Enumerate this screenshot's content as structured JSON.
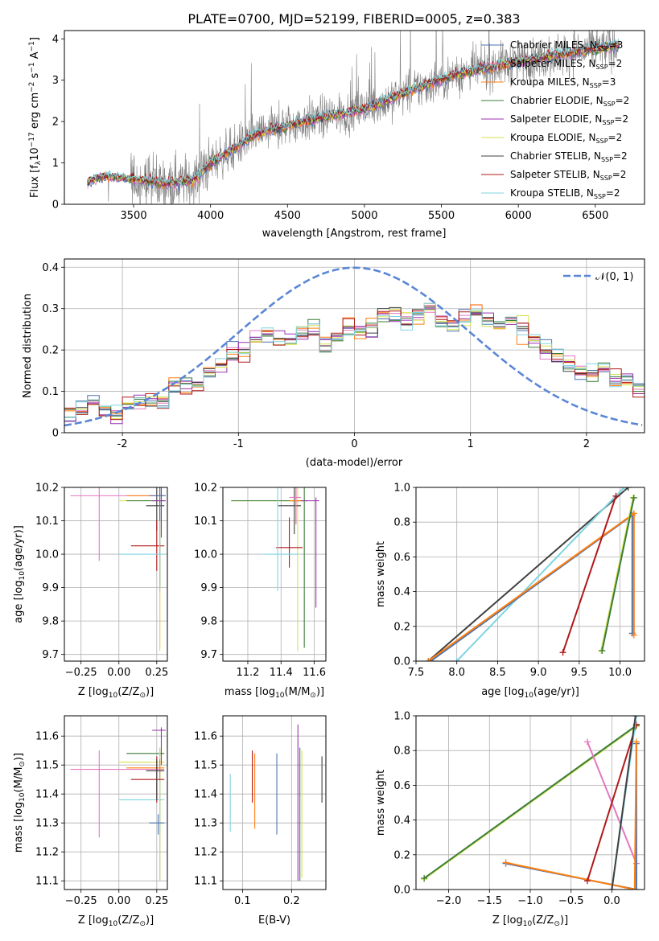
{
  "figure_title": "PLATE=0700, MJD=52199, FIBERID=0005, z=0.383",
  "colors": {
    "Chabrier MILES": "#4c72b0",
    "Salpeter MILES": "#e377c2",
    "Kroupa MILES": "#ff7f0e",
    "Chabrier ELODIE": "#3b7d3b",
    "Salpeter ELODIE": "#9b30b0",
    "Kroupa ELODIE": "#d6e34a",
    "Chabrier STELIB": "#404040",
    "Salpeter STELIB": "#b01818",
    "Kroupa STELIB": "#7fd4e0",
    "data": "#808080",
    "normal": "#5a86d6"
  },
  "chart_data": [
    {
      "id": "spectrum",
      "type": "line",
      "title": "PLATE=0700, MJD=52199, FIBERID=0005, z=0.383",
      "xlabel": "wavelength [Angstrom, rest frame]",
      "ylabel": "Flux [f",
      "ylabel_sub": "λ",
      "ylabel_rest": "10",
      "ylabel_sup": "−17",
      "ylabel_tail": " erg cm",
      "ylabel_sup2": "−2",
      "ylabel_tail2": " s",
      "ylabel_sup3": "−1",
      "ylabel_tail3": " A",
      "ylabel_sup4": "−1",
      "ylabel_end": "]",
      "xlim": [
        3050,
        6820
      ],
      "ylim": [
        0,
        4.2
      ],
      "xticks": [
        3500,
        4000,
        4500,
        5000,
        5500,
        6000,
        6500
      ],
      "yticks": [
        0,
        1,
        2,
        3,
        4
      ],
      "legend_position": "top-right",
      "data_range": [
        3200,
        6660
      ],
      "model_anchor_points": [
        [
          3200,
          0.55
        ],
        [
          3300,
          0.68
        ],
        [
          3500,
          0.62
        ],
        [
          3700,
          0.5
        ],
        [
          3900,
          0.6
        ],
        [
          4000,
          1.0
        ],
        [
          4300,
          1.7
        ],
        [
          4600,
          2.0
        ],
        [
          5000,
          2.3
        ],
        [
          5300,
          2.75
        ],
        [
          5600,
          3.15
        ],
        [
          6000,
          3.45
        ],
        [
          6400,
          3.7
        ],
        [
          6660,
          3.85
        ]
      ],
      "series": [
        {
          "name": "Chabrier MILES",
          "label": "Chabrier MILES, N",
          "sub": "SSP",
          "tail": "=3"
        },
        {
          "name": "Salpeter MILES",
          "label": "Salpeter MILES, N",
          "sub": "SSP",
          "tail": "=2"
        },
        {
          "name": "Kroupa MILES",
          "label": "Kroupa MILES, N",
          "sub": "SSP",
          "tail": "=3"
        },
        {
          "name": "Chabrier ELODIE",
          "label": "Chabrier ELODIE, N",
          "sub": "SSP",
          "tail": "=2"
        },
        {
          "name": "Salpeter ELODIE",
          "label": "Salpeter ELODIE, N",
          "sub": "SSP",
          "tail": "=2"
        },
        {
          "name": "Kroupa ELODIE",
          "label": "Kroupa ELODIE, N",
          "sub": "SSP",
          "tail": "=2"
        },
        {
          "name": "Chabrier STELIB",
          "label": "Chabrier STELIB, N",
          "sub": "SSP",
          "tail": "=2"
        },
        {
          "name": "Salpeter STELIB",
          "label": "Salpeter STELIB, N",
          "sub": "SSP",
          "tail": "=2"
        },
        {
          "name": "Kroupa STELIB",
          "label": "Kroupa STELIB, N",
          "sub": "SSP",
          "tail": "=2"
        }
      ]
    },
    {
      "id": "residuals",
      "type": "line",
      "xlabel": "(data-model)/error",
      "ylabel": "Normed distribution",
      "xlim": [
        -2.5,
        2.5
      ],
      "ylim": [
        0,
        0.42
      ],
      "xticks": [
        -2,
        -1,
        0,
        1,
        2
      ],
      "yticks": [
        0.0,
        0.1,
        0.2,
        0.3,
        0.4
      ],
      "grid": true,
      "legend_position": "top-right",
      "legend_label": "𝒩(0, 1)",
      "bins": [
        -2.5,
        2.5,
        50
      ],
      "base_hist": [
        0.045,
        0.055,
        0.07,
        0.055,
        0.045,
        0.06,
        0.08,
        0.07,
        0.08,
        0.11,
        0.12,
        0.11,
        0.15,
        0.16,
        0.19,
        0.2,
        0.23,
        0.24,
        0.22,
        0.23,
        0.24,
        0.25,
        0.22,
        0.23,
        0.26,
        0.24,
        0.25,
        0.28,
        0.29,
        0.27,
        0.28,
        0.3,
        0.27,
        0.26,
        0.28,
        0.29,
        0.27,
        0.26,
        0.27,
        0.25,
        0.23,
        0.2,
        0.19,
        0.17,
        0.15,
        0.14,
        0.16,
        0.13,
        0.12,
        0.11
      ]
    },
    {
      "id": "age-vs-Z",
      "type": "scatter",
      "xlabel": "Z [log",
      "xlabel_sub": "10",
      "xlabel_rest": "(Z/Z",
      "xlabel_sub2": "⊙",
      "xlabel_end": ")]",
      "ylabel": "age  [log",
      "ylabel_sub": "10",
      "ylabel_rest": "(age/yr)]",
      "xlim": [
        -0.36,
        0.32
      ],
      "ylim": [
        9.68,
        10.2
      ],
      "xticks": [
        -0.25,
        0.0,
        0.25
      ],
      "xticklabels": [
        "−0.25",
        "0.00",
        "0.25"
      ],
      "yticks": [
        9.7,
        9.8,
        9.9,
        10.0,
        10.1,
        10.2
      ],
      "yticklabels": [
        "9.7",
        "9.8",
        "9.9",
        "10.0",
        "10.1",
        "10.2"
      ],
      "grid": true,
      "points": [
        {
          "series": "Salpeter MILES",
          "x": -0.13,
          "xlo": -0.32,
          "xhi": 0.3,
          "y": 10.175,
          "ylo": 9.98,
          "yhi": 10.2
        },
        {
          "series": "Kroupa MILES",
          "x": 0.27,
          "xlo": 0.05,
          "xhi": 0.3,
          "y": 10.175,
          "ylo": 9.72,
          "yhi": 10.2
        },
        {
          "series": "Kroupa ELODIE",
          "x": 0.27,
          "xlo": 0.0,
          "xhi": 0.3,
          "y": 10.16,
          "ylo": 9.71,
          "yhi": 10.2
        },
        {
          "series": "Chabrier ELODIE",
          "x": 0.27,
          "xlo": 0.05,
          "xhi": 0.3,
          "y": 10.16,
          "ylo": 9.9,
          "yhi": 10.2
        },
        {
          "series": "Chabrier STELIB",
          "x": 0.25,
          "xlo": 0.18,
          "xhi": 0.3,
          "y": 10.145,
          "ylo": 10.07,
          "yhi": 10.2
        },
        {
          "series": "Salpeter STELIB",
          "x": 0.25,
          "xlo": 0.08,
          "xhi": 0.3,
          "y": 10.025,
          "ylo": 9.95,
          "yhi": 10.1
        },
        {
          "series": "Kroupa STELIB",
          "x": 0.27,
          "xlo": 0.0,
          "xhi": 0.3,
          "y": 10.0,
          "ylo": 9.89,
          "yhi": 10.2
        },
        {
          "series": "Salpeter ELODIE",
          "x": 0.28,
          "xlo": 0.22,
          "xhi": 0.31,
          "y": 10.16,
          "ylo": 10.05,
          "yhi": 10.2
        },
        {
          "series": "Chabrier MILES",
          "x": 0.27,
          "xlo": 0.2,
          "xhi": 0.31,
          "y": 10.175,
          "ylo": 10.1,
          "yhi": 10.2
        }
      ]
    },
    {
      "id": "age-vs-mass",
      "type": "scatter",
      "xlabel": "mass [log",
      "xlabel_sub": "10",
      "xlabel_rest": "(M/M",
      "xlabel_sub2": "⊙",
      "xlabel_end": ")]",
      "xlim": [
        11.05,
        11.67
      ],
      "ylim": [
        9.68,
        10.2
      ],
      "xticks": [
        11.2,
        11.4,
        11.6
      ],
      "yticks": [
        9.7,
        9.8,
        9.9,
        10.0,
        10.1,
        10.2
      ],
      "yticklabels": [
        "9.7",
        "9.8",
        "9.9",
        "10.0",
        "10.1",
        "10.2"
      ],
      "grid": true,
      "points": [
        {
          "series": "Kroupa ELODIE",
          "x": 11.5,
          "xlo": 11.1,
          "xhi": 11.56,
          "y": 10.16,
          "ylo": 9.71,
          "yhi": 10.2
        },
        {
          "series": "Chabrier ELODIE",
          "x": 11.54,
          "xlo": 11.1,
          "xhi": 11.56,
          "y": 10.16,
          "ylo": 9.72,
          "yhi": 10.2
        },
        {
          "series": "Salpeter ELODIE",
          "x": 11.61,
          "xlo": 11.5,
          "xhi": 11.63,
          "y": 10.16,
          "ylo": 9.84,
          "yhi": 10.17
        },
        {
          "series": "Chabrier STELIB",
          "x": 11.48,
          "xlo": 11.38,
          "xhi": 11.52,
          "y": 10.145,
          "ylo": 10.06,
          "yhi": 10.2
        },
        {
          "series": "Salpeter STELIB",
          "x": 11.45,
          "xlo": 11.37,
          "xhi": 11.53,
          "y": 10.02,
          "ylo": 9.96,
          "yhi": 10.11
        },
        {
          "series": "Kroupa STELIB",
          "x": 11.38,
          "xlo": 11.29,
          "xhi": 11.5,
          "y": 10.0,
          "ylo": 9.89,
          "yhi": 10.2
        },
        {
          "series": "Kroupa MILES",
          "x": 11.49,
          "xlo": 11.45,
          "xhi": 11.52,
          "y": 10.16,
          "ylo": 10.09,
          "yhi": 10.2
        },
        {
          "series": "Salpeter MILES",
          "x": 11.49,
          "xlo": 11.45,
          "xhi": 11.52,
          "y": 10.17,
          "ylo": 10.09,
          "yhi": 10.2
        }
      ]
    },
    {
      "id": "mass-weight-vs-age",
      "type": "line",
      "xlabel": "age  [log",
      "xlabel_sub": "10",
      "xlabel_rest": "(age/yr)]",
      "ylabel": "mass weight",
      "xlim": [
        7.5,
        10.3
      ],
      "ylim": [
        0,
        1
      ],
      "xticks": [
        7.5,
        8.0,
        8.5,
        9.0,
        9.5,
        10.0
      ],
      "xticklabels": [
        "7.5",
        "8.0",
        "8.5",
        "9.0",
        "9.5",
        "10.0"
      ],
      "yticks": [
        0.0,
        0.2,
        0.4,
        0.6,
        0.8,
        1.0
      ],
      "yticklabels": [
        "0.0",
        "0.2",
        "0.4",
        "0.6",
        "0.8",
        "1.0"
      ],
      "grid": true,
      "series": [
        {
          "name": "Chabrier STELIB",
          "x": [
            7.65,
            10.1
          ],
          "y": [
            0.0,
            1.0
          ]
        },
        {
          "name": "Kroupa STELIB",
          "x": [
            8.0,
            10.05
          ],
          "y": [
            0.0,
            1.0
          ]
        },
        {
          "name": "Chabrier MILES",
          "x": [
            7.68,
            10.15,
            10.15
          ],
          "y": [
            0.0,
            0.84,
            0.16
          ]
        },
        {
          "name": "Kroupa MILES",
          "x": [
            7.65,
            10.17,
            10.17
          ],
          "y": [
            0.0,
            0.85,
            0.15
          ]
        },
        {
          "name": "Salpeter STELIB",
          "x": [
            9.3,
            9.95
          ],
          "y": [
            0.05,
            0.95
          ]
        },
        {
          "name": "Kroupa ELODIE",
          "x": [
            9.77,
            10.16
          ],
          "y": [
            0.06,
            0.94
          ]
        },
        {
          "name": "Chabrier ELODIE",
          "x": [
            9.78,
            10.17
          ],
          "y": [
            0.06,
            0.94
          ]
        }
      ]
    },
    {
      "id": "mass-vs-Z",
      "type": "scatter",
      "xlabel": "Z [log",
      "xlabel_sub": "10",
      "xlabel_rest": "(Z/Z",
      "xlabel_sub2": "⊙",
      "xlabel_end": ")]",
      "ylabel": "mass [log",
      "ylabel_sub": "10",
      "ylabel_rest": "(M/M",
      "ylabel_sub2": "⊙",
      "ylabel_end": ")]",
      "xlim": [
        -0.36,
        0.32
      ],
      "ylim": [
        11.07,
        11.67
      ],
      "xticks": [
        -0.25,
        0.0,
        0.25
      ],
      "xticklabels": [
        "−0.25",
        "0.00",
        "0.25"
      ],
      "yticks": [
        11.1,
        11.2,
        11.3,
        11.4,
        11.5,
        11.6
      ],
      "grid": true,
      "points": [
        {
          "series": "Salpeter MILES",
          "x": -0.13,
          "xlo": -0.32,
          "xhi": 0.3,
          "y": 11.485,
          "ylo": 11.25,
          "yhi": 11.55
        },
        {
          "series": "Kroupa STELIB",
          "x": 0.27,
          "xlo": 0.0,
          "xhi": 0.3,
          "y": 11.38,
          "ylo": 11.27,
          "yhi": 11.5
        },
        {
          "series": "Chabrier ELODIE",
          "x": 0.27,
          "xlo": 0.05,
          "xhi": 0.3,
          "y": 11.54,
          "ylo": 11.1,
          "yhi": 11.56
        },
        {
          "series": "Kroupa ELODIE",
          "x": 0.27,
          "xlo": 0.0,
          "xhi": 0.3,
          "y": 11.51,
          "ylo": 11.1,
          "yhi": 11.56
        },
        {
          "series": "Kroupa MILES",
          "x": 0.27,
          "xlo": 0.05,
          "xhi": 0.3,
          "y": 11.49,
          "ylo": 11.45,
          "yhi": 11.52
        },
        {
          "series": "Salpeter STELIB",
          "x": 0.25,
          "xlo": 0.08,
          "xhi": 0.3,
          "y": 11.45,
          "ylo": 11.37,
          "yhi": 11.53
        },
        {
          "series": "Salpeter ELODIE",
          "x": 0.28,
          "xlo": 0.22,
          "xhi": 0.31,
          "y": 11.62,
          "ylo": 11.5,
          "yhi": 11.63
        },
        {
          "series": "Chabrier STELIB",
          "x": 0.25,
          "xlo": 0.18,
          "xhi": 0.3,
          "y": 11.48,
          "ylo": 11.38,
          "yhi": 11.52
        },
        {
          "series": "Chabrier MILES",
          "x": 0.26,
          "xlo": 0.2,
          "xhi": 0.3,
          "y": 11.3,
          "ylo": 11.26,
          "yhi": 11.33
        }
      ]
    },
    {
      "id": "mass-vs-EBV",
      "type": "scatter",
      "xlabel": "E(B-V)",
      "xlim": [
        0.06,
        0.27
      ],
      "ylim": [
        11.07,
        11.67
      ],
      "xticks": [
        0.1,
        0.2
      ],
      "yticks": [
        11.1,
        11.2,
        11.3,
        11.4,
        11.5,
        11.6
      ],
      "grid": true,
      "points": [
        {
          "series": "Kroupa STELIB",
          "x": 0.075,
          "y": 11.38,
          "ylo": 11.27,
          "yhi": 11.47
        },
        {
          "series": "Salpeter STELIB",
          "x": 0.12,
          "y": 11.45,
          "ylo": 11.37,
          "yhi": 11.55
        },
        {
          "series": "Kroupa MILES",
          "x": 0.125,
          "y": 11.49,
          "ylo": 11.28,
          "yhi": 11.54
        },
        {
          "series": "Chabrier MILES",
          "x": 0.17,
          "y": 11.42,
          "ylo": 11.26,
          "yhi": 11.54
        },
        {
          "series": "Salpeter ELODIE",
          "x": 0.213,
          "y": 11.55,
          "ylo": 11.1,
          "yhi": 11.64
        },
        {
          "series": "Chabrier ELODIE",
          "x": 0.217,
          "y": 11.53,
          "ylo": 11.1,
          "yhi": 11.56
        },
        {
          "series": "Kroupa ELODIE",
          "x": 0.221,
          "y": 11.51,
          "ylo": 11.11,
          "yhi": 11.55
        },
        {
          "series": "Chabrier STELIB",
          "x": 0.262,
          "y": 11.45,
          "ylo": 11.37,
          "yhi": 11.53
        }
      ]
    },
    {
      "id": "mass-weight-vs-Z",
      "type": "line",
      "xlabel": "Z [log",
      "xlabel_sub": "10",
      "xlabel_rest": "(Z/Z",
      "xlabel_sub2": "⊙",
      "xlabel_end": ")]",
      "ylabel": "mass weight",
      "xlim": [
        -2.4,
        0.4
      ],
      "ylim": [
        0,
        1
      ],
      "xticks": [
        -2.0,
        -1.5,
        -1.0,
        -0.5,
        0.0
      ],
      "xticklabels": [
        "−2.0",
        "−1.5",
        "−1.0",
        "−0.5",
        "0.0"
      ],
      "yticks": [
        0.0,
        0.2,
        0.4,
        0.6,
        0.8,
        1.0
      ],
      "yticklabels": [
        "0.0",
        "0.2",
        "0.4",
        "0.6",
        "0.8",
        "1.0"
      ],
      "grid": true,
      "series": [
        {
          "name": "Kroupa ELODIE",
          "x": [
            -2.3,
            0.3
          ],
          "y": [
            0.06,
            0.94
          ]
        },
        {
          "name": "Chabrier ELODIE",
          "x": [
            -2.3,
            0.3
          ],
          "y": [
            0.065,
            0.945
          ]
        },
        {
          "name": "Salpeter MILES",
          "x": [
            -0.3,
            0.3
          ],
          "y": [
            0.85,
            0.15
          ]
        },
        {
          "name": "Chabrier MILES",
          "x": [
            -1.3,
            0.3,
            0.3
          ],
          "y": [
            0.15,
            0.0,
            0.84
          ]
        },
        {
          "name": "Kroupa MILES",
          "x": [
            -1.3,
            0.28,
            0.3
          ],
          "y": [
            0.155,
            0.0,
            0.85
          ]
        },
        {
          "name": "Salpeter STELIB",
          "x": [
            -0.3,
            0.3
          ],
          "y": [
            0.05,
            0.95
          ]
        },
        {
          "name": "Kroupa STELIB",
          "x": [
            0.0,
            0.3
          ],
          "y": [
            0.0,
            1.0
          ]
        },
        {
          "name": "Chabrier STELIB",
          "x": [
            0.0,
            0.29
          ],
          "y": [
            0.0,
            1.0
          ]
        }
      ]
    }
  ]
}
